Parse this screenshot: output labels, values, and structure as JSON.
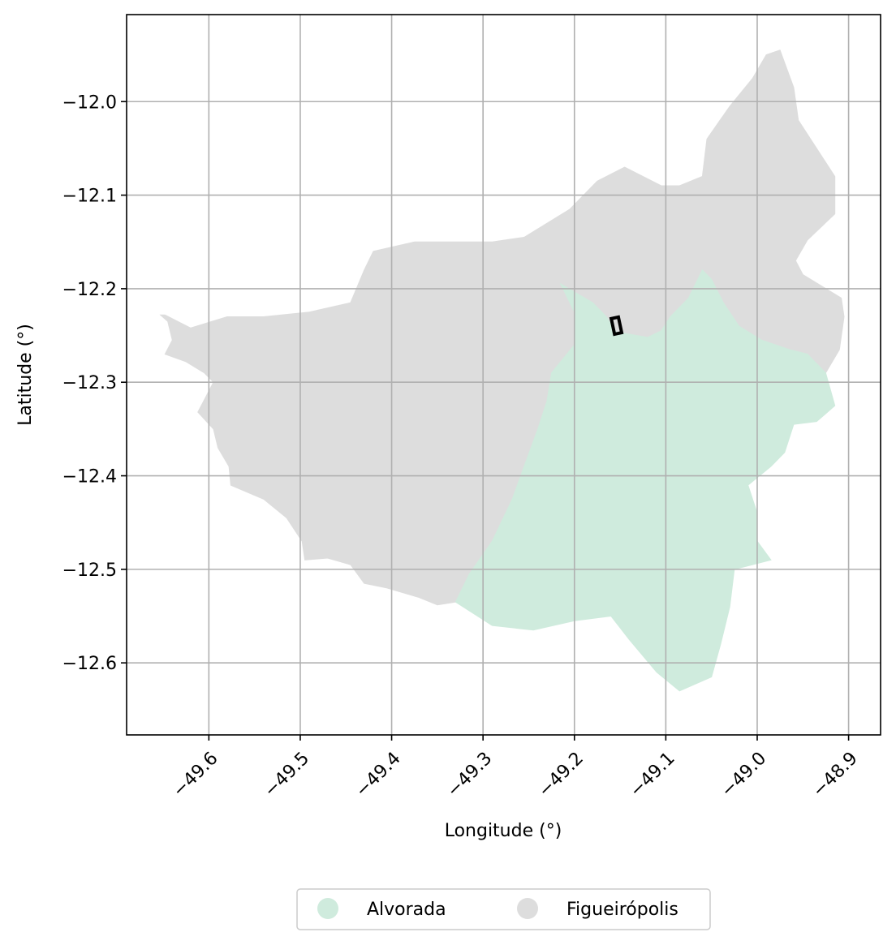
{
  "chart_data": {
    "type": "map",
    "xlabel": "Longitude (°)",
    "ylabel": "Latitude (°)",
    "xlim": [
      -49.69,
      -48.865
    ],
    "ylim": [
      -12.677,
      -11.907
    ],
    "grid": true,
    "x_ticks": [
      -49.6,
      -49.5,
      -49.4,
      -49.3,
      -49.2,
      -49.1,
      -49.0,
      -48.9
    ],
    "x_tick_labels": [
      "−49.6",
      "−49.5",
      "−49.4",
      "−49.3",
      "−49.2",
      "−49.1",
      "−49.0",
      "−48.9"
    ],
    "y_ticks": [
      -12.0,
      -12.1,
      -12.2,
      -12.3,
      -12.4,
      -12.5,
      -12.6
    ],
    "y_tick_labels": [
      "−12.0",
      "−12.1",
      "−12.2",
      "−12.3",
      "−12.4",
      "−12.5",
      "−12.6"
    ],
    "legend_position": "bottom-center",
    "series": [
      {
        "name": "Figueirópolis",
        "color": "#dddddd",
        "boundary": [
          [
            -49.653,
            -12.228
          ],
          [
            -49.645,
            -12.235
          ],
          [
            -49.64,
            -12.255
          ],
          [
            -49.648,
            -12.27
          ],
          [
            -49.625,
            -12.278
          ],
          [
            -49.605,
            -12.29
          ],
          [
            -49.595,
            -12.3
          ],
          [
            -49.612,
            -12.332
          ],
          [
            -49.595,
            -12.35
          ],
          [
            -49.59,
            -12.37
          ],
          [
            -49.578,
            -12.39
          ],
          [
            -49.576,
            -12.41
          ],
          [
            -49.54,
            -12.425
          ],
          [
            -49.515,
            -12.445
          ],
          [
            -49.498,
            -12.47
          ],
          [
            -49.495,
            -12.49
          ],
          [
            -49.47,
            -12.488
          ],
          [
            -49.445,
            -12.495
          ],
          [
            -49.43,
            -12.515
          ],
          [
            -49.405,
            -12.52
          ],
          [
            -49.37,
            -12.53
          ],
          [
            -49.35,
            -12.538
          ],
          [
            -49.33,
            -12.535
          ],
          [
            -49.315,
            -12.505
          ],
          [
            -49.29,
            -12.47
          ],
          [
            -49.268,
            -12.425
          ],
          [
            -49.255,
            -12.39
          ],
          [
            -49.24,
            -12.35
          ],
          [
            -49.23,
            -12.32
          ],
          [
            -49.225,
            -12.29
          ],
          [
            -49.2,
            -12.26
          ],
          [
            -49.2,
            -12.225
          ],
          [
            -49.215,
            -12.195
          ],
          [
            -49.18,
            -12.215
          ],
          [
            -49.165,
            -12.23
          ],
          [
            -49.155,
            -12.246
          ],
          [
            -49.12,
            -12.252
          ],
          [
            -49.105,
            -12.245
          ],
          [
            -49.095,
            -12.23
          ],
          [
            -49.075,
            -12.21
          ],
          [
            -49.06,
            -12.18
          ],
          [
            -49.05,
            -12.19
          ],
          [
            -49.037,
            -12.215
          ],
          [
            -49.02,
            -12.24
          ],
          [
            -48.995,
            -12.255
          ],
          [
            -48.965,
            -12.265
          ],
          [
            -48.945,
            -12.27
          ],
          [
            -48.925,
            -12.29
          ],
          [
            -48.91,
            -12.265
          ],
          [
            -48.905,
            -12.23
          ],
          [
            -48.908,
            -12.21
          ],
          [
            -48.95,
            -12.185
          ],
          [
            -48.958,
            -12.17
          ],
          [
            -48.945,
            -12.148
          ],
          [
            -48.915,
            -12.12
          ],
          [
            -48.915,
            -12.08
          ],
          [
            -48.935,
            -12.05
          ],
          [
            -48.955,
            -12.02
          ],
          [
            -48.96,
            -11.985
          ],
          [
            -48.975,
            -11.945
          ],
          [
            -48.99,
            -11.95
          ],
          [
            -49.005,
            -11.975
          ],
          [
            -49.03,
            -12.005
          ],
          [
            -49.055,
            -12.04
          ],
          [
            -49.06,
            -12.08
          ],
          [
            -49.085,
            -12.09
          ],
          [
            -49.105,
            -12.09
          ],
          [
            -49.145,
            -12.07
          ],
          [
            -49.175,
            -12.085
          ],
          [
            -49.205,
            -12.115
          ],
          [
            -49.255,
            -12.145
          ],
          [
            -49.29,
            -12.15
          ],
          [
            -49.33,
            -12.15
          ],
          [
            -49.375,
            -12.15
          ],
          [
            -49.42,
            -12.16
          ],
          [
            -49.43,
            -12.18
          ],
          [
            -49.445,
            -12.215
          ],
          [
            -49.49,
            -12.225
          ],
          [
            -49.54,
            -12.23
          ],
          [
            -49.58,
            -12.23
          ],
          [
            -49.62,
            -12.242
          ],
          [
            -49.648,
            -12.228
          ]
        ]
      },
      {
        "name": "Alvorada",
        "color": "#cfebdd",
        "boundary": [
          [
            -49.215,
            -12.195
          ],
          [
            -49.18,
            -12.215
          ],
          [
            -49.165,
            -12.23
          ],
          [
            -49.155,
            -12.246
          ],
          [
            -49.12,
            -12.252
          ],
          [
            -49.105,
            -12.245
          ],
          [
            -49.095,
            -12.23
          ],
          [
            -49.075,
            -12.21
          ],
          [
            -49.06,
            -12.18
          ],
          [
            -49.05,
            -12.19
          ],
          [
            -49.037,
            -12.215
          ],
          [
            -49.02,
            -12.24
          ],
          [
            -48.995,
            -12.255
          ],
          [
            -48.965,
            -12.265
          ],
          [
            -48.945,
            -12.27
          ],
          [
            -48.925,
            -12.29
          ],
          [
            -48.915,
            -12.325
          ],
          [
            -48.935,
            -12.342
          ],
          [
            -48.96,
            -12.345
          ],
          [
            -48.97,
            -12.375
          ],
          [
            -48.985,
            -12.39
          ],
          [
            -49.01,
            -12.41
          ],
          [
            -49.0,
            -12.44
          ],
          [
            -49.0,
            -12.47
          ],
          [
            -48.985,
            -12.49
          ],
          [
            -49.025,
            -12.5
          ],
          [
            -49.03,
            -12.54
          ],
          [
            -49.04,
            -12.58
          ],
          [
            -49.05,
            -12.615
          ],
          [
            -49.085,
            -12.63
          ],
          [
            -49.11,
            -12.61
          ],
          [
            -49.14,
            -12.575
          ],
          [
            -49.16,
            -12.55
          ],
          [
            -49.2,
            -12.555
          ],
          [
            -49.245,
            -12.565
          ],
          [
            -49.29,
            -12.56
          ],
          [
            -49.33,
            -12.535
          ],
          [
            -49.315,
            -12.505
          ],
          [
            -49.29,
            -12.47
          ],
          [
            -49.268,
            -12.425
          ],
          [
            -49.255,
            -12.39
          ],
          [
            -49.24,
            -12.35
          ],
          [
            -49.23,
            -12.32
          ],
          [
            -49.225,
            -12.29
          ],
          [
            -49.2,
            -12.26
          ],
          [
            -49.2,
            -12.225
          ],
          [
            -49.215,
            -12.195
          ]
        ]
      }
    ],
    "marker": {
      "type": "rectangle-outline",
      "color": "#000000",
      "bounds": {
        "lon_min": -49.158,
        "lon_max": -49.15,
        "lat_min": -12.248,
        "lat_max": -12.231
      }
    }
  },
  "legend": {
    "items": [
      {
        "label": "Alvorada",
        "color": "#cfebdd"
      },
      {
        "label": "Figueirópolis",
        "color": "#dddddd"
      }
    ]
  }
}
